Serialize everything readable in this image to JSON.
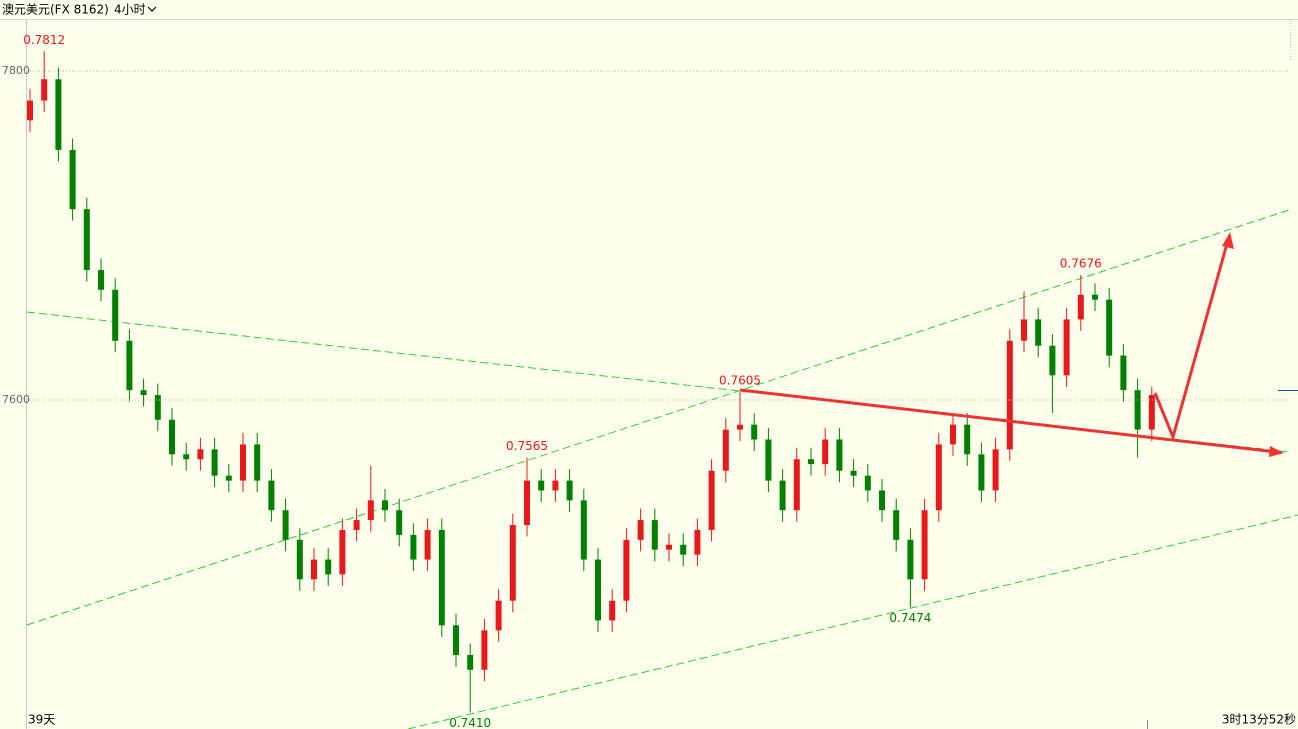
{
  "chart_data": {
    "type": "candlestick",
    "title": "澳元美元(FX 8162)",
    "timeframe": "4小时",
    "footer_left": "39天",
    "footer_right": "3时13分52秒",
    "up_color": "#e8191a",
    "down_color": "#008000",
    "ylim": [
      0.74,
      0.7831
    ],
    "yticks": [
      {
        "value": 0.78,
        "label": "7800"
      },
      {
        "value": 0.76,
        "label": "7600"
      }
    ],
    "grid": true,
    "open": [
      0.777,
      0.7782,
      0.7795,
      0.7752,
      0.7716,
      0.7679,
      0.7667,
      0.7636,
      0.7606,
      0.7603,
      0.7588,
      0.7567,
      0.7564,
      0.757,
      0.7554,
      0.7551,
      0.7573,
      0.7551,
      0.7533,
      0.7515,
      0.7491,
      0.7503,
      0.7494,
      0.7521,
      0.7527,
      0.7539,
      0.7533,
      0.7518,
      0.7503,
      0.7521,
      0.7463,
      0.7445,
      0.7436,
      0.746,
      0.7478,
      0.7524,
      0.7551,
      0.7545,
      0.7551,
      0.7539,
      0.7503,
      0.7466,
      0.7478,
      0.7515,
      0.7527,
      0.7509,
      0.7512,
      0.7506,
      0.7521,
      0.7557,
      0.7582,
      0.7585,
      0.7576,
      0.7551,
      0.7533,
      0.7564,
      0.7561,
      0.7576,
      0.7557,
      0.7554,
      0.7545,
      0.7533,
      0.7515,
      0.7491,
      0.7533,
      0.7573,
      0.7585,
      0.7567,
      0.7545,
      0.757,
      0.7636,
      0.7649,
      0.7633,
      0.7615,
      0.7649,
      0.7664,
      0.7661,
      0.7627,
      0.7606,
      0.7582
    ],
    "high": [
      0.7789,
      0.7812,
      0.7802,
      0.7759,
      0.7723,
      0.7686,
      0.7674,
      0.7643,
      0.7613,
      0.761,
      0.7595,
      0.7574,
      0.7577,
      0.7577,
      0.7561,
      0.758,
      0.758,
      0.7558,
      0.754,
      0.7522,
      0.751,
      0.751,
      0.7528,
      0.7534,
      0.756,
      0.7546,
      0.754,
      0.7525,
      0.7528,
      0.7528,
      0.747,
      0.7452,
      0.7467,
      0.7485,
      0.7531,
      0.7565,
      0.7558,
      0.7558,
      0.7558,
      0.7546,
      0.751,
      0.7485,
      0.7522,
      0.7534,
      0.7534,
      0.7519,
      0.7519,
      0.7528,
      0.7564,
      0.7589,
      0.7605,
      0.7592,
      0.7583,
      0.7558,
      0.7571,
      0.7571,
      0.7583,
      0.7583,
      0.7564,
      0.7561,
      0.7552,
      0.754,
      0.7522,
      0.754,
      0.758,
      0.7592,
      0.7592,
      0.7574,
      0.7577,
      0.7643,
      0.7666,
      0.7656,
      0.764,
      0.7656,
      0.7676,
      0.7671,
      0.7668,
      0.7634,
      0.7613,
      0.7608
    ],
    "low": [
      0.7763,
      0.7775,
      0.7745,
      0.7709,
      0.7672,
      0.766,
      0.7629,
      0.7599,
      0.7596,
      0.7581,
      0.756,
      0.7557,
      0.7557,
      0.7547,
      0.7544,
      0.7544,
      0.7544,
      0.7526,
      0.7508,
      0.7484,
      0.7484,
      0.7487,
      0.7487,
      0.7514,
      0.752,
      0.7526,
      0.7511,
      0.7496,
      0.7496,
      0.7456,
      0.7438,
      0.741,
      0.7429,
      0.7453,
      0.7471,
      0.7517,
      0.7538,
      0.7538,
      0.7532,
      0.7496,
      0.7459,
      0.7459,
      0.7471,
      0.7508,
      0.7502,
      0.7502,
      0.7499,
      0.7499,
      0.7514,
      0.755,
      0.7575,
      0.7569,
      0.7544,
      0.7526,
      0.7526,
      0.7554,
      0.7554,
      0.755,
      0.7547,
      0.7538,
      0.7526,
      0.7508,
      0.7474,
      0.7484,
      0.7526,
      0.7566,
      0.756,
      0.7538,
      0.7538,
      0.7563,
      0.7629,
      0.7626,
      0.7592,
      0.7608,
      0.7642,
      0.7654,
      0.762,
      0.7599,
      0.7565,
      0.7575
    ],
    "close": [
      0.7782,
      0.7795,
      0.7752,
      0.7716,
      0.7679,
      0.7667,
      0.7636,
      0.7606,
      0.7603,
      0.7588,
      0.7567,
      0.7564,
      0.757,
      0.7554,
      0.7551,
      0.7573,
      0.7551,
      0.7533,
      0.7515,
      0.7491,
      0.7503,
      0.7494,
      0.7521,
      0.7527,
      0.7539,
      0.7533,
      0.7518,
      0.7503,
      0.7521,
      0.7463,
      0.7445,
      0.7436,
      0.746,
      0.7478,
      0.7524,
      0.7551,
      0.7545,
      0.7551,
      0.7539,
      0.7503,
      0.7466,
      0.7478,
      0.7515,
      0.7527,
      0.7509,
      0.7512,
      0.7506,
      0.7521,
      0.7557,
      0.7582,
      0.7585,
      0.7576,
      0.7551,
      0.7533,
      0.7564,
      0.7561,
      0.7576,
      0.7557,
      0.7554,
      0.7545,
      0.7533,
      0.7515,
      0.7491,
      0.7533,
      0.7573,
      0.7585,
      0.7567,
      0.7545,
      0.757,
      0.7636,
      0.7649,
      0.7633,
      0.7615,
      0.7649,
      0.7664,
      0.7661,
      0.7627,
      0.7606,
      0.7582,
      0.7603
    ],
    "annotations": [
      {
        "index": 1,
        "value": 0.7812,
        "label": "0.7812",
        "position": "above",
        "color": "#e8191a"
      },
      {
        "index": 31,
        "value": 0.741,
        "label": "0.7410",
        "position": "below",
        "color": "#008000"
      },
      {
        "index": 35,
        "value": 0.7565,
        "label": "0.7565",
        "position": "above",
        "color": "#e8191a"
      },
      {
        "index": 50,
        "value": 0.7605,
        "label": "0.7605",
        "position": "above",
        "color": "#e8191a"
      },
      {
        "index": 62,
        "value": 0.7474,
        "label": "0.7474",
        "position": "below",
        "color": "#008000"
      },
      {
        "index": 74,
        "value": 0.7676,
        "label": "0.7676",
        "position": "above",
        "color": "#e8191a"
      }
    ]
  }
}
